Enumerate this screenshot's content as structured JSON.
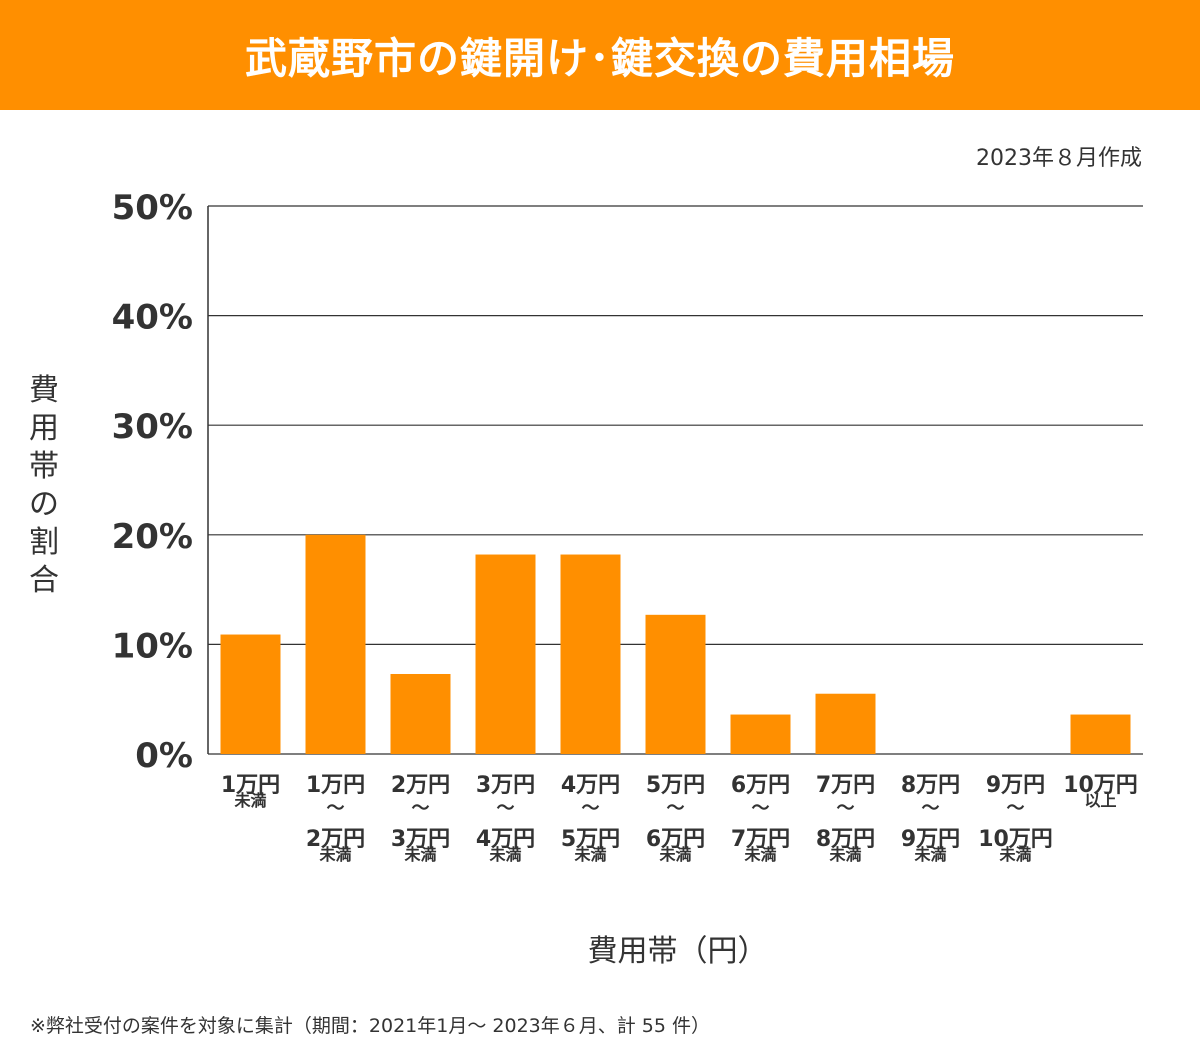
{
  "header": {
    "title": "武蔵野市の鍵開け･鍵交換の費用相場"
  },
  "created": "2023年８月作成",
  "footnote": "※弊社受付の案件を対象に集計（期間：2021年1月～ 2023年６月、計 55 件）",
  "colors": {
    "accent": "#ff8f00",
    "bar": "#ff8f00",
    "grid": "#333333",
    "text": "#333333"
  },
  "chart_data": {
    "type": "bar",
    "title": "武蔵野市の鍵開け･鍵交換の費用相場",
    "xlabel": "費用帯（円）",
    "ylabel": "費用帯の割合",
    "ylim": [
      0,
      50
    ],
    "y_ticks": [
      "0%",
      "10%",
      "20%",
      "30%",
      "40%",
      "50%"
    ],
    "y_tick_values": [
      0,
      10,
      20,
      30,
      40,
      50
    ],
    "grid": true,
    "categories": [
      [
        "1万円",
        "未満"
      ],
      [
        "1万円",
        "〜",
        "2万円",
        "未満"
      ],
      [
        "2万円",
        "〜",
        "3万円",
        "未満"
      ],
      [
        "3万円",
        "〜",
        "4万円",
        "未満"
      ],
      [
        "4万円",
        "〜",
        "5万円",
        "未満"
      ],
      [
        "5万円",
        "〜",
        "6万円",
        "未満"
      ],
      [
        "6万円",
        "〜",
        "7万円",
        "未満"
      ],
      [
        "7万円",
        "〜",
        "8万円",
        "未満"
      ],
      [
        "8万円",
        "〜",
        "9万円",
        "未満"
      ],
      [
        "9万円",
        "〜",
        "10万円",
        "未満"
      ],
      [
        "10万円",
        "以上"
      ]
    ],
    "values": [
      10.9,
      20.0,
      7.3,
      18.2,
      18.2,
      12.7,
      3.6,
      5.5,
      0,
      0,
      3.6
    ]
  }
}
